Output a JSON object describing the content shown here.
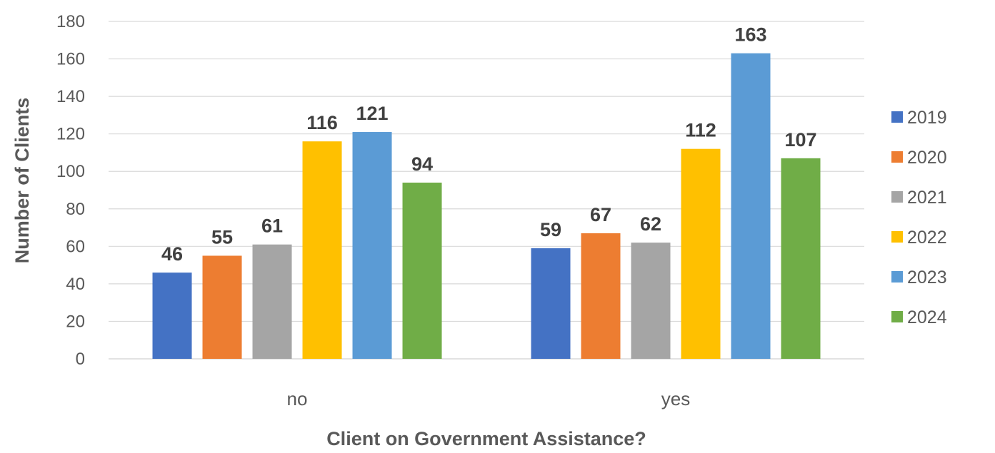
{
  "chart_data": {
    "type": "bar",
    "title": "",
    "xlabel": "Client on Government Assistance?",
    "ylabel": "Number of Clients",
    "categories": [
      "no",
      "yes"
    ],
    "ylim": [
      0,
      180
    ],
    "yticks": [
      0,
      20,
      40,
      60,
      80,
      100,
      120,
      140,
      160,
      180
    ],
    "grid": true,
    "legend_position": "right",
    "series": [
      {
        "name": "2019",
        "color": "#4472C4",
        "values": [
          46,
          59
        ]
      },
      {
        "name": "2020",
        "color": "#ED7D31",
        "values": [
          55,
          67
        ]
      },
      {
        "name": "2021",
        "color": "#A5A5A5",
        "values": [
          61,
          62
        ]
      },
      {
        "name": "2022",
        "color": "#FFC000",
        "values": [
          116,
          112
        ]
      },
      {
        "name": "2023",
        "color": "#5B9BD5",
        "values": [
          121,
          163
        ]
      },
      {
        "name": "2024",
        "color": "#70AD47",
        "values": [
          94,
          107
        ]
      }
    ]
  }
}
